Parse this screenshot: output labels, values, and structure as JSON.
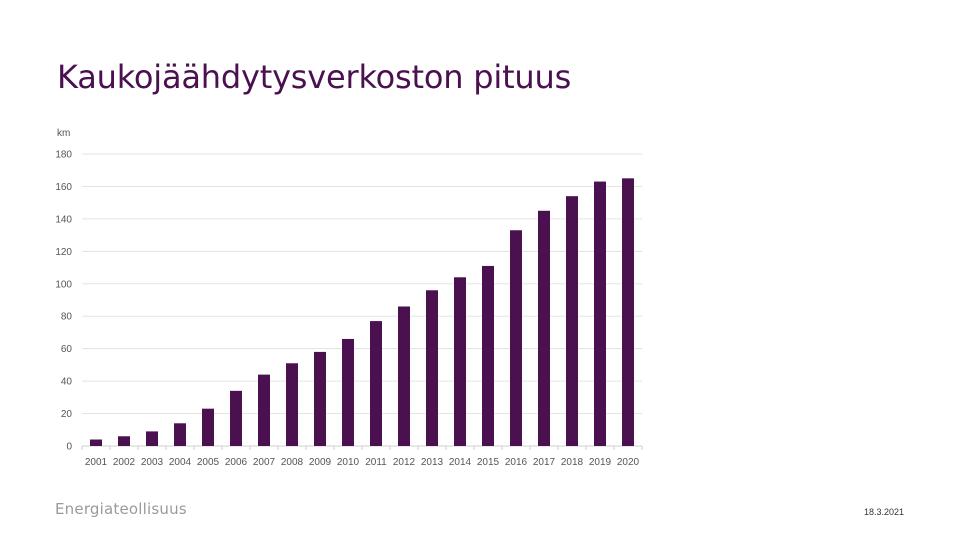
{
  "slide": {
    "title": "Kaukojäähdytysverkoston pituus",
    "logo_text": "Energiateollisuus",
    "date": "18.3.2021"
  },
  "colors": {
    "bar": "#4a1050",
    "title": "#4a1050",
    "grid": "#e3e3e3"
  },
  "chart_data": {
    "type": "bar",
    "title": "",
    "xlabel": "",
    "ylabel": "km",
    "ylim": [
      0,
      180
    ],
    "yticks": [
      0,
      20,
      40,
      60,
      80,
      100,
      120,
      140,
      160,
      180
    ],
    "grid": true,
    "categories": [
      "2001",
      "2002",
      "2003",
      "2004",
      "2005",
      "2006",
      "2007",
      "2008",
      "2009",
      "2010",
      "2011",
      "2012",
      "2013",
      "2014",
      "2015",
      "2016",
      "2017",
      "2018",
      "2019",
      "2020"
    ],
    "values": [
      4,
      6,
      9,
      14,
      23,
      34,
      44,
      51,
      58,
      66,
      77,
      86,
      96,
      104,
      111,
      133,
      145,
      154,
      163,
      165
    ]
  }
}
